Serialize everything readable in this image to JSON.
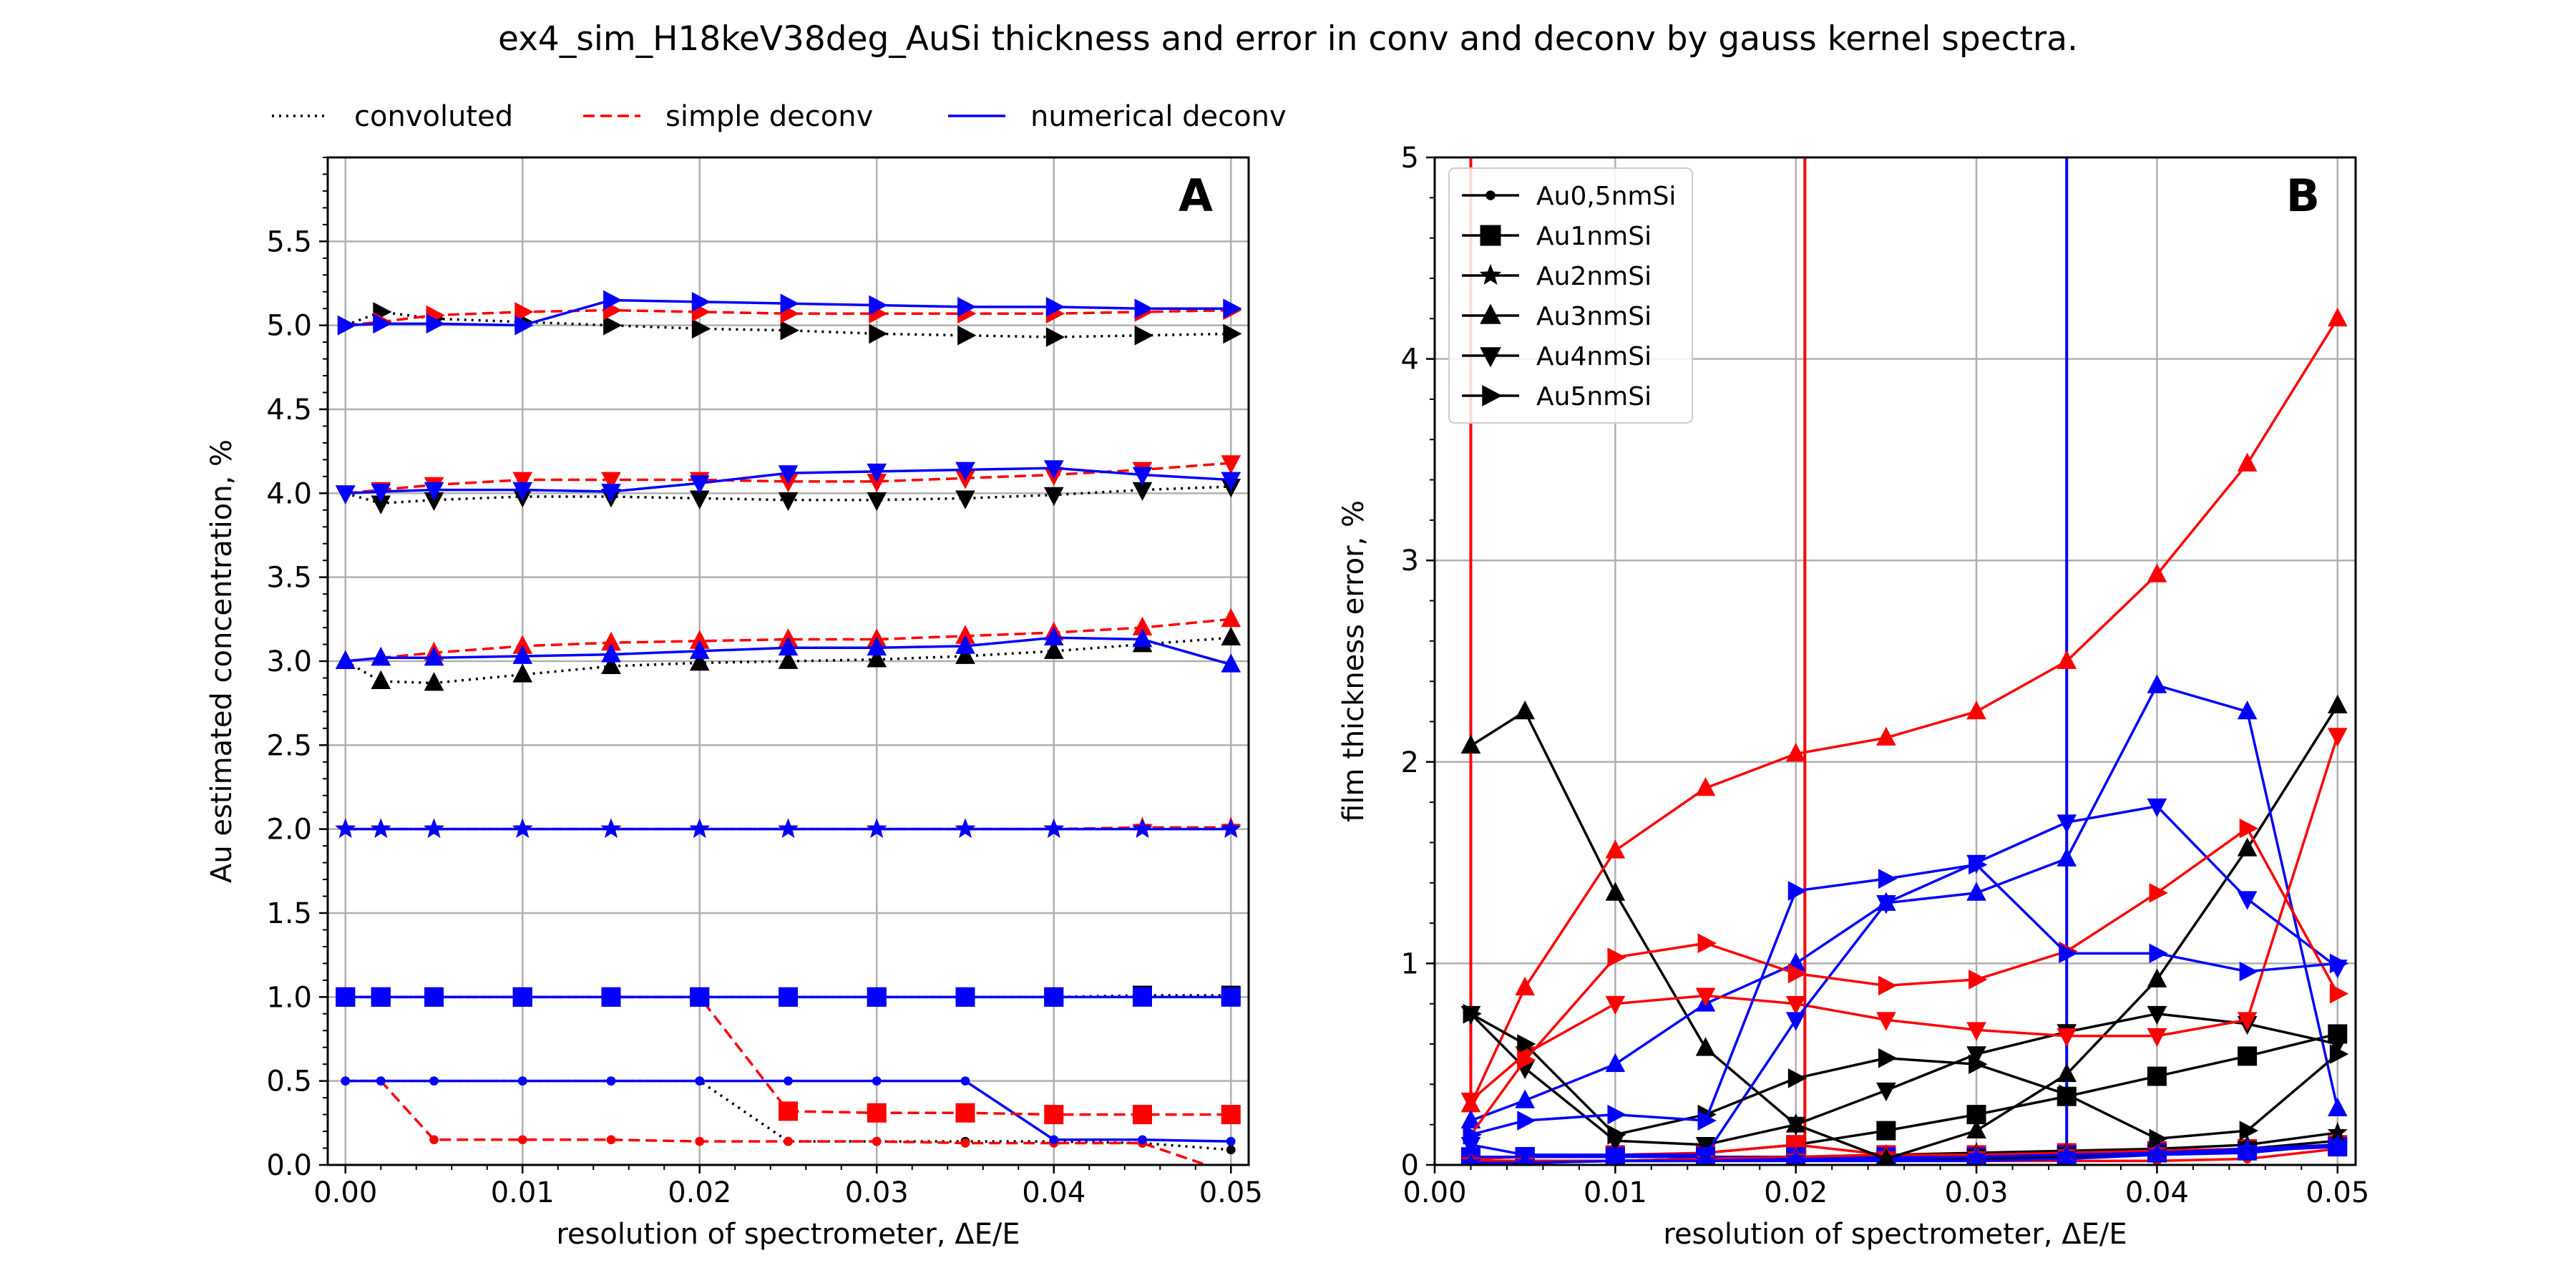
{
  "figure": {
    "title": "ex4_sim_H18keV38deg_AuSi thickness and error in conv and deconv by gauss kernel spectra."
  },
  "colors": {
    "convoluted": "#000000",
    "simple": "#ff0000",
    "numerical": "#0000ff",
    "grid": "#b0b0b0"
  },
  "top_legend": [
    {
      "label": "convoluted",
      "style": "dotted",
      "color": "#000000"
    },
    {
      "label": "simple deconv",
      "style": "dashed",
      "color": "#ff0000"
    },
    {
      "label": "numerical deconv",
      "style": "solid",
      "color": "#0000ff"
    }
  ],
  "chart_data": [
    {
      "type": "line",
      "panel_label": "A",
      "xlabel": "resolution of spectrometer, ΔE/E",
      "ylabel": "Au estimated concentration, %",
      "xlim": [
        -0.001,
        0.051
      ],
      "ylim": [
        0,
        6.0
      ],
      "xticks": [
        "0.00",
        "0.01",
        "0.02",
        "0.03",
        "0.04",
        "0.05"
      ],
      "yticks": [
        "0.0",
        "0.5",
        "1.0",
        "1.5",
        "2.0",
        "2.5",
        "3.0",
        "3.5",
        "4.0",
        "4.5",
        "5.0",
        "5.5"
      ],
      "grid": true,
      "x": [
        0.0,
        0.002,
        0.005,
        0.01,
        0.015,
        0.02,
        0.025,
        0.03,
        0.035,
        0.04,
        0.045,
        0.05
      ],
      "series": [
        {
          "sample": "Au0,5nmSi",
          "method": "convoluted",
          "marker": "dot",
          "values": [
            0.5,
            0.5,
            0.5,
            0.5,
            0.5,
            0.5,
            0.14,
            0.14,
            0.14,
            0.14,
            0.13,
            0.09
          ]
        },
        {
          "sample": "Au0,5nmSi",
          "method": "simple",
          "marker": "dot",
          "values": [
            0.5,
            0.5,
            0.15,
            0.15,
            0.15,
            0.14,
            0.14,
            0.14,
            0.13,
            0.13,
            0.13,
            -0.05
          ]
        },
        {
          "sample": "Au0,5nmSi",
          "method": "numerical",
          "marker": "dot",
          "values": [
            0.5,
            0.5,
            0.5,
            0.5,
            0.5,
            0.5,
            0.5,
            0.5,
            0.5,
            0.15,
            0.15,
            0.14
          ]
        },
        {
          "sample": "Au1nmSi",
          "method": "convoluted",
          "marker": "square",
          "values": [
            1.0,
            1.0,
            1.0,
            1.0,
            1.0,
            1.0,
            1.0,
            1.0,
            1.0,
            1.0,
            1.01,
            1.01
          ]
        },
        {
          "sample": "Au1nmSi",
          "method": "simple",
          "marker": "square",
          "values": [
            1.0,
            1.0,
            1.0,
            1.0,
            1.0,
            1.0,
            0.32,
            0.31,
            0.31,
            0.3,
            0.3,
            0.3
          ]
        },
        {
          "sample": "Au1nmSi",
          "method": "numerical",
          "marker": "square",
          "values": [
            1.0,
            1.0,
            1.0,
            1.0,
            1.0,
            1.0,
            1.0,
            1.0,
            1.0,
            1.0,
            1.0,
            1.0
          ]
        },
        {
          "sample": "Au2nmSi",
          "method": "convoluted",
          "marker": "star",
          "values": [
            2.0,
            2.0,
            2.0,
            2.0,
            2.0,
            2.0,
            2.0,
            2.0,
            2.0,
            2.0,
            2.0,
            2.0
          ]
        },
        {
          "sample": "Au2nmSi",
          "method": "simple",
          "marker": "star",
          "values": [
            2.0,
            2.0,
            2.0,
            2.0,
            2.0,
            2.0,
            2.0,
            2.0,
            2.0,
            2.0,
            2.01,
            2.01
          ]
        },
        {
          "sample": "Au2nmSi",
          "method": "numerical",
          "marker": "star",
          "values": [
            2.0,
            2.0,
            2.0,
            2.0,
            2.0,
            2.0,
            2.0,
            2.0,
            2.0,
            2.0,
            2.0,
            2.0
          ]
        },
        {
          "sample": "Au3nmSi",
          "method": "convoluted",
          "marker": "triangle-up",
          "values": [
            3.0,
            2.88,
            2.87,
            2.92,
            2.97,
            2.99,
            3.0,
            3.01,
            3.03,
            3.06,
            3.1,
            3.14
          ]
        },
        {
          "sample": "Au3nmSi",
          "method": "simple",
          "marker": "triangle-up",
          "values": [
            3.0,
            3.02,
            3.05,
            3.09,
            3.11,
            3.12,
            3.13,
            3.13,
            3.15,
            3.17,
            3.2,
            3.25
          ]
        },
        {
          "sample": "Au3nmSi",
          "method": "numerical",
          "marker": "triangle-up",
          "values": [
            3.0,
            3.02,
            3.02,
            3.03,
            3.04,
            3.06,
            3.08,
            3.08,
            3.09,
            3.14,
            3.13,
            2.98
          ]
        },
        {
          "sample": "Au4nmSi",
          "method": "convoluted",
          "marker": "triangle-down",
          "values": [
            4.0,
            3.94,
            3.96,
            3.98,
            3.98,
            3.97,
            3.96,
            3.96,
            3.97,
            3.99,
            4.02,
            4.04
          ]
        },
        {
          "sample": "Au4nmSi",
          "method": "simple",
          "marker": "triangle-down",
          "values": [
            4.0,
            4.02,
            4.05,
            4.08,
            4.08,
            4.08,
            4.07,
            4.07,
            4.09,
            4.11,
            4.14,
            4.18
          ]
        },
        {
          "sample": "Au4nmSi",
          "method": "numerical",
          "marker": "triangle-down",
          "values": [
            4.0,
            4.01,
            4.02,
            4.02,
            4.01,
            4.06,
            4.12,
            4.13,
            4.14,
            4.15,
            4.11,
            4.08
          ]
        },
        {
          "sample": "Au5nmSi",
          "method": "convoluted",
          "marker": "triangle-right",
          "values": [
            5.0,
            5.08,
            5.04,
            5.02,
            5.0,
            4.98,
            4.97,
            4.95,
            4.94,
            4.93,
            4.94,
            4.95
          ]
        },
        {
          "sample": "Au5nmSi",
          "method": "simple",
          "marker": "triangle-right",
          "values": [
            5.0,
            5.02,
            5.06,
            5.08,
            5.09,
            5.08,
            5.07,
            5.07,
            5.07,
            5.07,
            5.08,
            5.09
          ]
        },
        {
          "sample": "Au5nmSi",
          "method": "numerical",
          "marker": "triangle-right",
          "values": [
            5.0,
            5.01,
            5.01,
            5.0,
            5.15,
            5.14,
            5.13,
            5.12,
            5.11,
            5.11,
            5.1,
            5.1
          ]
        }
      ]
    },
    {
      "type": "line",
      "panel_label": "B",
      "xlabel": "resolution of spectrometer, ΔE/E",
      "ylabel": "film thickness error, %",
      "xlim": [
        0.0,
        0.051
      ],
      "ylim": [
        0,
        5
      ],
      "xticks": [
        "0.00",
        "0.01",
        "0.02",
        "0.03",
        "0.04",
        "0.05"
      ],
      "yticks": [
        "0",
        "1",
        "2",
        "3",
        "4",
        "5"
      ],
      "grid": true,
      "legend_position": "upper-left",
      "legend": [
        "Au0,5nmSi",
        "Au1nmSi",
        "Au2nmSi",
        "Au3nmSi",
        "Au4nmSi",
        "Au5nmSi"
      ],
      "x": [
        0.002,
        0.005,
        0.01,
        0.015,
        0.02,
        0.025,
        0.03,
        0.035,
        0.04,
        0.045,
        0.05
      ],
      "series": [
        {
          "sample": "Au0,5nmSi",
          "method": "convoluted",
          "marker": "dot",
          "values": [
            0.02,
            0.02,
            0.02,
            0.03,
            0.03,
            0.03,
            0.03,
            0.04,
            0.05,
            0.08,
            0.12
          ]
        },
        {
          "sample": "Au0,5nmSi",
          "method": "simple",
          "marker": "dot",
          "values": [
            0.02,
            0.02,
            0.02,
            0.02,
            0.02,
            0.02,
            0.02,
            0.02,
            0.02,
            0.03,
            0.08
          ]
        },
        {
          "sample": "Au0,5nmSi",
          "method": "numerical",
          "marker": "dot",
          "values": [
            0.02,
            0.02,
            0.02,
            0.02,
            0.02,
            0.02,
            0.02,
            0.03,
            0.05,
            0.06,
            0.1
          ]
        },
        {
          "sample": "Au1nmSi",
          "method": "convoluted",
          "marker": "square",
          "values": [
            0.03,
            0.04,
            0.04,
            0.06,
            0.1,
            0.17,
            0.25,
            0.34,
            0.44,
            0.54,
            0.65
          ]
        },
        {
          "sample": "Au1nmSi",
          "method": "simple",
          "marker": "square",
          "values": [
            0.03,
            0.04,
            0.05,
            0.06,
            0.1,
            0.05,
            0.05,
            0.06,
            0.07,
            0.08,
            0.1
          ]
        },
        {
          "sample": "Au1nmSi",
          "method": "numerical",
          "marker": "square",
          "values": [
            0.04,
            0.04,
            0.04,
            0.04,
            0.04,
            0.04,
            0.04,
            0.05,
            0.06,
            0.07,
            0.09
          ]
        },
        {
          "sample": "Au2nmSi",
          "method": "convoluted",
          "marker": "star",
          "values": [
            0.01,
            0.01,
            0.02,
            0.03,
            0.04,
            0.05,
            0.06,
            0.07,
            0.08,
            0.1,
            0.16
          ]
        },
        {
          "sample": "Au2nmSi",
          "method": "simple",
          "marker": "star",
          "values": [
            0.02,
            0.02,
            0.02,
            0.03,
            0.04,
            0.05,
            0.05,
            0.06,
            0.07,
            0.08,
            0.1
          ]
        },
        {
          "sample": "Au2nmSi",
          "method": "numerical",
          "marker": "star",
          "values": [
            0.01,
            0.01,
            0.02,
            0.02,
            0.03,
            0.03,
            0.04,
            0.05,
            0.06,
            0.08,
            0.1
          ]
        },
        {
          "sample": "Au3nmSi",
          "method": "convoluted",
          "marker": "triangle-up",
          "values": [
            2.08,
            2.25,
            1.35,
            0.58,
            0.2,
            0.03,
            0.17,
            0.45,
            0.92,
            1.57,
            2.28
          ]
        },
        {
          "sample": "Au3nmSi",
          "method": "simple",
          "marker": "triangle-up",
          "values": [
            0.3,
            0.88,
            1.56,
            1.87,
            2.04,
            2.12,
            2.25,
            2.5,
            2.93,
            3.48,
            4.2
          ]
        },
        {
          "sample": "Au3nmSi",
          "method": "numerical",
          "marker": "triangle-up",
          "values": [
            0.22,
            0.32,
            0.5,
            0.8,
            1.0,
            1.3,
            1.35,
            1.52,
            2.38,
            2.25,
            0.28
          ]
        },
        {
          "sample": "Au4nmSi",
          "method": "convoluted",
          "marker": "triangle-down",
          "values": [
            0.75,
            0.48,
            0.12,
            0.1,
            0.2,
            0.37,
            0.55,
            0.66,
            0.75,
            0.7,
            0.6
          ]
        },
        {
          "sample": "Au4nmSi",
          "method": "simple",
          "marker": "triangle-down",
          "values": [
            0.32,
            0.55,
            0.8,
            0.84,
            0.8,
            0.72,
            0.67,
            0.64,
            0.64,
            0.72,
            2.13
          ]
        },
        {
          "sample": "Au4nmSi",
          "method": "numerical",
          "marker": "triangle-down",
          "values": [
            0.1,
            0.05,
            0.05,
            0.05,
            0.72,
            1.3,
            1.5,
            1.7,
            1.78,
            1.32,
            0.98
          ]
        },
        {
          "sample": "Au5nmSi",
          "method": "convoluted",
          "marker": "triangle-right",
          "values": [
            0.75,
            0.6,
            0.15,
            0.25,
            0.43,
            0.53,
            0.5,
            0.35,
            0.13,
            0.17,
            0.55
          ]
        },
        {
          "sample": "Au5nmSi",
          "method": "simple",
          "marker": "triangle-right",
          "values": [
            0.15,
            0.52,
            1.03,
            1.1,
            0.95,
            0.89,
            0.92,
            1.06,
            1.35,
            1.67,
            0.85
          ]
        },
        {
          "sample": "Au5nmSi",
          "method": "numerical",
          "marker": "triangle-right",
          "values": [
            0.15,
            0.22,
            0.25,
            0.22,
            1.36,
            1.42,
            1.49,
            1.05,
            1.05,
            0.96,
            1.0
          ]
        }
      ],
      "spikes": [
        {
          "method": "simple",
          "x": 0.002,
          "from": 0.3,
          "to": 5
        },
        {
          "method": "simple",
          "x": 0.0205,
          "from": 0.05,
          "to": 5
        },
        {
          "method": "numerical",
          "x": 0.035,
          "from": 0.04,
          "to": 5
        }
      ]
    }
  ]
}
